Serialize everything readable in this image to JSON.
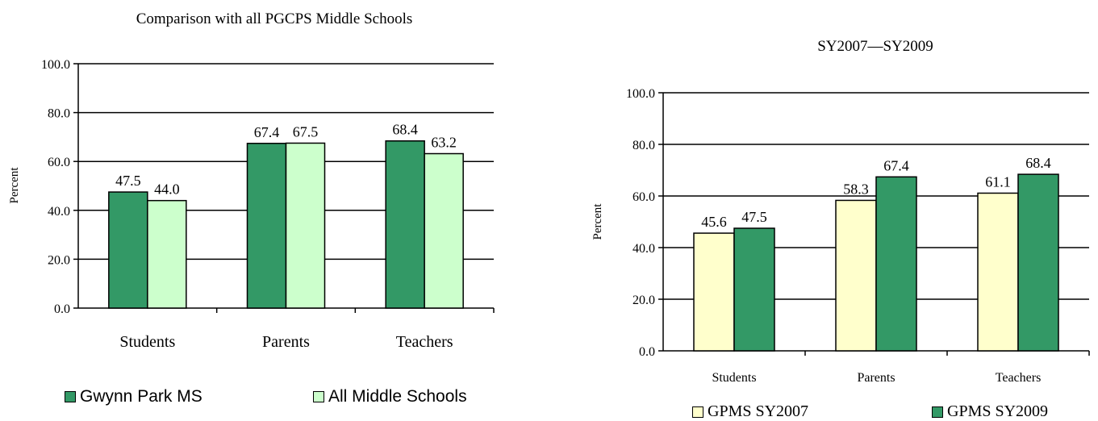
{
  "chart_data": [
    {
      "type": "bar",
      "title": "Comparison with all PGCPS Middle Schools",
      "ylabel": "Percent",
      "xlabel": "",
      "ylim": [
        0,
        100
      ],
      "yticks": [
        "0.0",
        "20.0",
        "40.0",
        "60.0",
        "80.0",
        "100.0"
      ],
      "categories": [
        "Students",
        "Parents",
        "Teachers"
      ],
      "series": [
        {
          "name": "Gwynn Park MS",
          "values": [
            47.5,
            67.4,
            68.4
          ],
          "labels": [
            "47.5",
            "67.4",
            "68.4"
          ],
          "color": "#339966"
        },
        {
          "name": "All Middle Schools",
          "values": [
            44.0,
            67.5,
            63.2
          ],
          "labels": [
            "44.0",
            "67.5",
            "63.2"
          ],
          "color": "#ccffcc"
        }
      ],
      "grid": true,
      "legend": "bottom"
    },
    {
      "type": "bar",
      "title": "SY2007—SY2009",
      "ylabel": "Percent",
      "xlabel": "",
      "ylim": [
        0,
        100
      ],
      "yticks": [
        "0.0",
        "20.0",
        "40.0",
        "60.0",
        "80.0",
        "100.0"
      ],
      "categories": [
        "Students",
        "Parents",
        "Teachers"
      ],
      "series": [
        {
          "name": "GPMS SY2007",
          "values": [
            45.6,
            58.3,
            61.1
          ],
          "labels": [
            "45.6",
            "58.3",
            "61.1"
          ],
          "color": "#ffffcc"
        },
        {
          "name": "GPMS SY2009",
          "values": [
            47.5,
            67.4,
            68.4
          ],
          "labels": [
            "47.5",
            "67.4",
            "68.4"
          ],
          "color": "#339966"
        }
      ],
      "grid": true,
      "legend": "bottom"
    }
  ]
}
